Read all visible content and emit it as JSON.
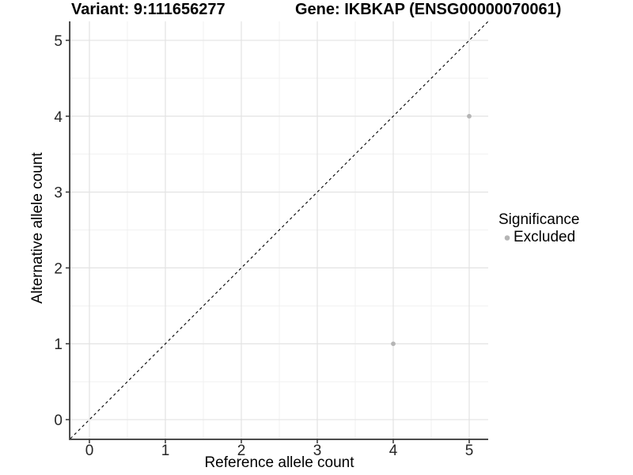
{
  "chart_data": {
    "type": "scatter",
    "title_left": "Variant: 9:111656277",
    "title_right": "Gene: IKBKAP (ENSG00000070061)",
    "xlabel": "Reference allele count",
    "ylabel": "Alternative allele count",
    "xlim": [
      -0.25,
      5.25
    ],
    "ylim": [
      -0.25,
      5.25
    ],
    "xticks": [
      0,
      1,
      2,
      3,
      4,
      5
    ],
    "yticks": [
      0,
      1,
      2,
      3,
      4,
      5
    ],
    "minor_xticks": [
      0.5,
      1.5,
      2.5,
      3.5,
      4.5
    ],
    "minor_yticks": [
      0.5,
      1.5,
      2.5,
      3.5,
      4.5
    ],
    "grid": "on",
    "identity_line": {
      "style": "dashed",
      "color": "#000000",
      "slope": 1,
      "intercept": 0
    },
    "series": [
      {
        "name": "Excluded",
        "color": "#b5b5b5",
        "points": [
          [
            4,
            1
          ],
          [
            5,
            4
          ]
        ]
      }
    ],
    "legend": {
      "title": "Significance",
      "position": "right",
      "items": [
        {
          "label": "Excluded",
          "color": "#b5b5b5"
        }
      ]
    },
    "colors": {
      "grid_major": "#e3e3e3",
      "grid_minor": "#f1f1f1",
      "axis_line": "#404040",
      "tick_mark": "#333333",
      "tick_text": "#262626",
      "background": "#ffffff"
    }
  }
}
